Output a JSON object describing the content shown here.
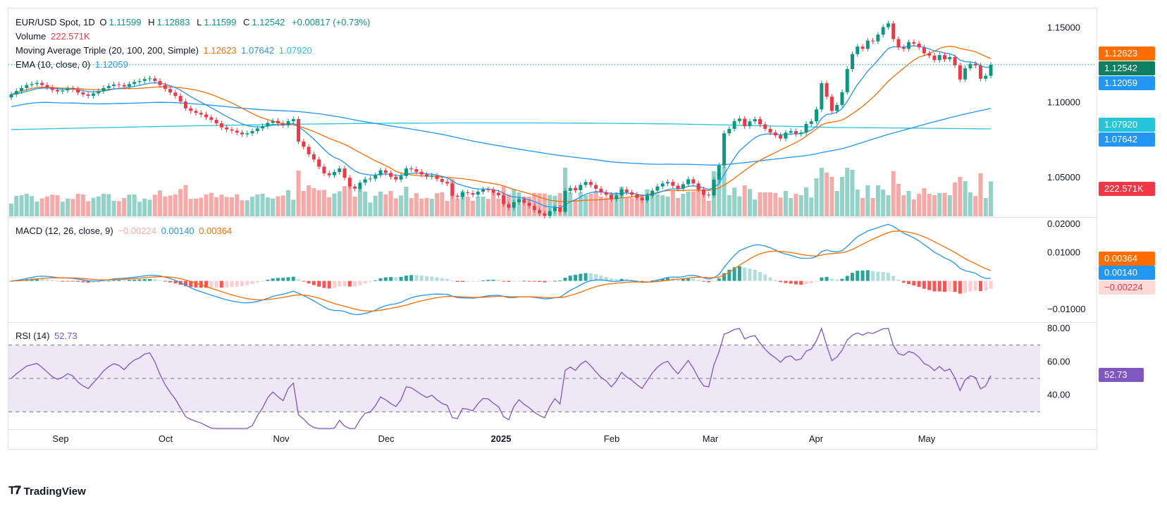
{
  "header": {
    "symbol": "EUR/USD Spot, 1D",
    "ohlc": [
      {
        "k": "O",
        "v": "1.11599"
      },
      {
        "k": "H",
        "v": "1.12883"
      },
      {
        "k": "L",
        "v": "1.11599"
      },
      {
        "k": "C",
        "v": "1.12542"
      }
    ],
    "change": "+0.00817 (+0.73%)"
  },
  "legends": {
    "volume_label": "Volume",
    "volume_value": "222.571K",
    "ma_label": "Moving Average Triple (20, 100, 200, Simple)",
    "ma20": "1.12623",
    "ma100": "1.07642",
    "ma200": "1.07920",
    "ema_label": "EMA (10, close, 0)",
    "ema_value": "1.12059",
    "macd_label": "MACD (12, 26, close, 9)",
    "macd_hist": "−0.00224",
    "macd_line": "0.00140",
    "macd_signal": "0.00364",
    "rsi_label": "RSI (14)",
    "rsi_value": "52.73"
  },
  "badges": {
    "ma20": "1.12623",
    "close": "1.12542",
    "ema": "1.12059",
    "ma200": "1.07920",
    "ma100": "1.07642",
    "volume": "222.571K",
    "macd_signal": "0.00364",
    "macd_line": "0.00140",
    "macd_hist": "−0.00224",
    "rsi": "52.73"
  },
  "colors": {
    "up": "#089981",
    "down": "#f23645",
    "vol_up": "#92d2c7",
    "vol_down": "#f7a9a7",
    "ma20": "#ff6d00",
    "ma100": "#2196f3",
    "ma200": "#26c6da",
    "ema": "#2196f3",
    "macd_line": "#2196f3",
    "macd_signal": "#ff6d00",
    "rsi": "#7e57c2",
    "rsi_band": "#ede7f6"
  },
  "footer": {
    "brand": "TradingView"
  },
  "chart_data": {
    "type": "candlestick",
    "x_axis_labels": [
      "Sep",
      "Oct",
      "Nov",
      "Dec",
      "2025",
      "Feb",
      "Mar",
      "Apr",
      "May"
    ],
    "price_axis": {
      "ticks": [
        "1.15000",
        "1.10000",
        "1.05000"
      ],
      "range": [
        1.024,
        1.163
      ]
    },
    "macd_axis": {
      "ticks": [
        "0.02000",
        "0.01000",
        "−0.01000"
      ],
      "range": [
        -0.014,
        0.022
      ]
    },
    "rsi_axis": {
      "ticks": [
        "80.00",
        "60.00",
        "40.00"
      ],
      "range": [
        20,
        80
      ],
      "bands": [
        30,
        50,
        70
      ]
    },
    "candle_closes": [
      1.1055,
      1.1078,
      1.1098,
      1.1118,
      1.1125,
      1.1132,
      1.1118,
      1.1102,
      1.1085,
      1.1075,
      1.1082,
      1.1095,
      1.1088,
      1.1068,
      1.1055,
      1.1046,
      1.1062,
      1.1078,
      1.1098,
      1.1112,
      1.1122,
      1.1118,
      1.1108,
      1.1125,
      1.1138,
      1.1145,
      1.1158,
      1.1162,
      1.1145,
      1.1118,
      1.1092,
      1.1068,
      1.1045,
      1.1008,
      1.0962,
      1.0945,
      1.0932,
      1.0921,
      1.0903,
      1.0885,
      1.0862,
      1.0835,
      1.0821,
      1.0813,
      1.08,
      1.0788,
      1.0795,
      1.081,
      1.0828,
      1.0843,
      1.0865,
      1.0878,
      1.0862,
      1.0848,
      1.0876,
      1.089,
      1.074,
      1.0705,
      1.0655,
      1.062,
      1.0572,
      1.0528,
      1.0515,
      1.0536,
      1.056,
      1.0498,
      1.044,
      1.0425,
      1.0465,
      1.0488,
      1.0492,
      1.0515,
      1.0548,
      1.053,
      1.0505,
      1.0486,
      1.051,
      1.056,
      1.0555,
      1.0538,
      1.052,
      1.0505,
      1.0512,
      1.049,
      1.047,
      1.046,
      1.0378,
      1.037,
      1.04,
      1.0395,
      1.0385,
      1.0405,
      1.042,
      1.0418,
      1.0398,
      1.038,
      1.0322,
      1.0298,
      1.0335,
      1.0355,
      1.033,
      1.031,
      1.0282,
      1.026,
      1.0244,
      1.0275,
      1.0298,
      1.027,
      1.041,
      1.043,
      1.0415,
      1.045,
      1.047,
      1.045,
      1.0425,
      1.04,
      1.0384,
      1.0355,
      1.038,
      1.042,
      1.04,
      1.0385,
      1.0365,
      1.0347,
      1.0378,
      1.0412,
      1.044,
      1.046,
      1.047,
      1.0445,
      1.0425,
      1.0455,
      1.0488,
      1.046,
      1.042,
      1.0385,
      1.038,
      1.0485,
      1.058,
      1.0795,
      1.0825,
      1.0877,
      1.0893,
      1.0843,
      1.0875,
      1.089,
      1.0855,
      1.0825,
      1.08,
      1.0782,
      1.076,
      1.08,
      1.081,
      1.079,
      1.08,
      1.0858,
      1.0875,
      1.0955,
      1.113,
      1.104,
      1.0945,
      1.0985,
      1.107,
      1.1225,
      1.1325,
      1.1375,
      1.136,
      1.1415,
      1.141,
      1.1455,
      1.1505,
      1.153,
      1.1425,
      1.137,
      1.136,
      1.1405,
      1.1395,
      1.137,
      1.133,
      1.1315,
      1.1285,
      1.1318,
      1.129,
      1.1305,
      1.125,
      1.1155,
      1.123,
      1.126,
      1.1248,
      1.116,
      1.118,
      1.1254
    ]
  }
}
